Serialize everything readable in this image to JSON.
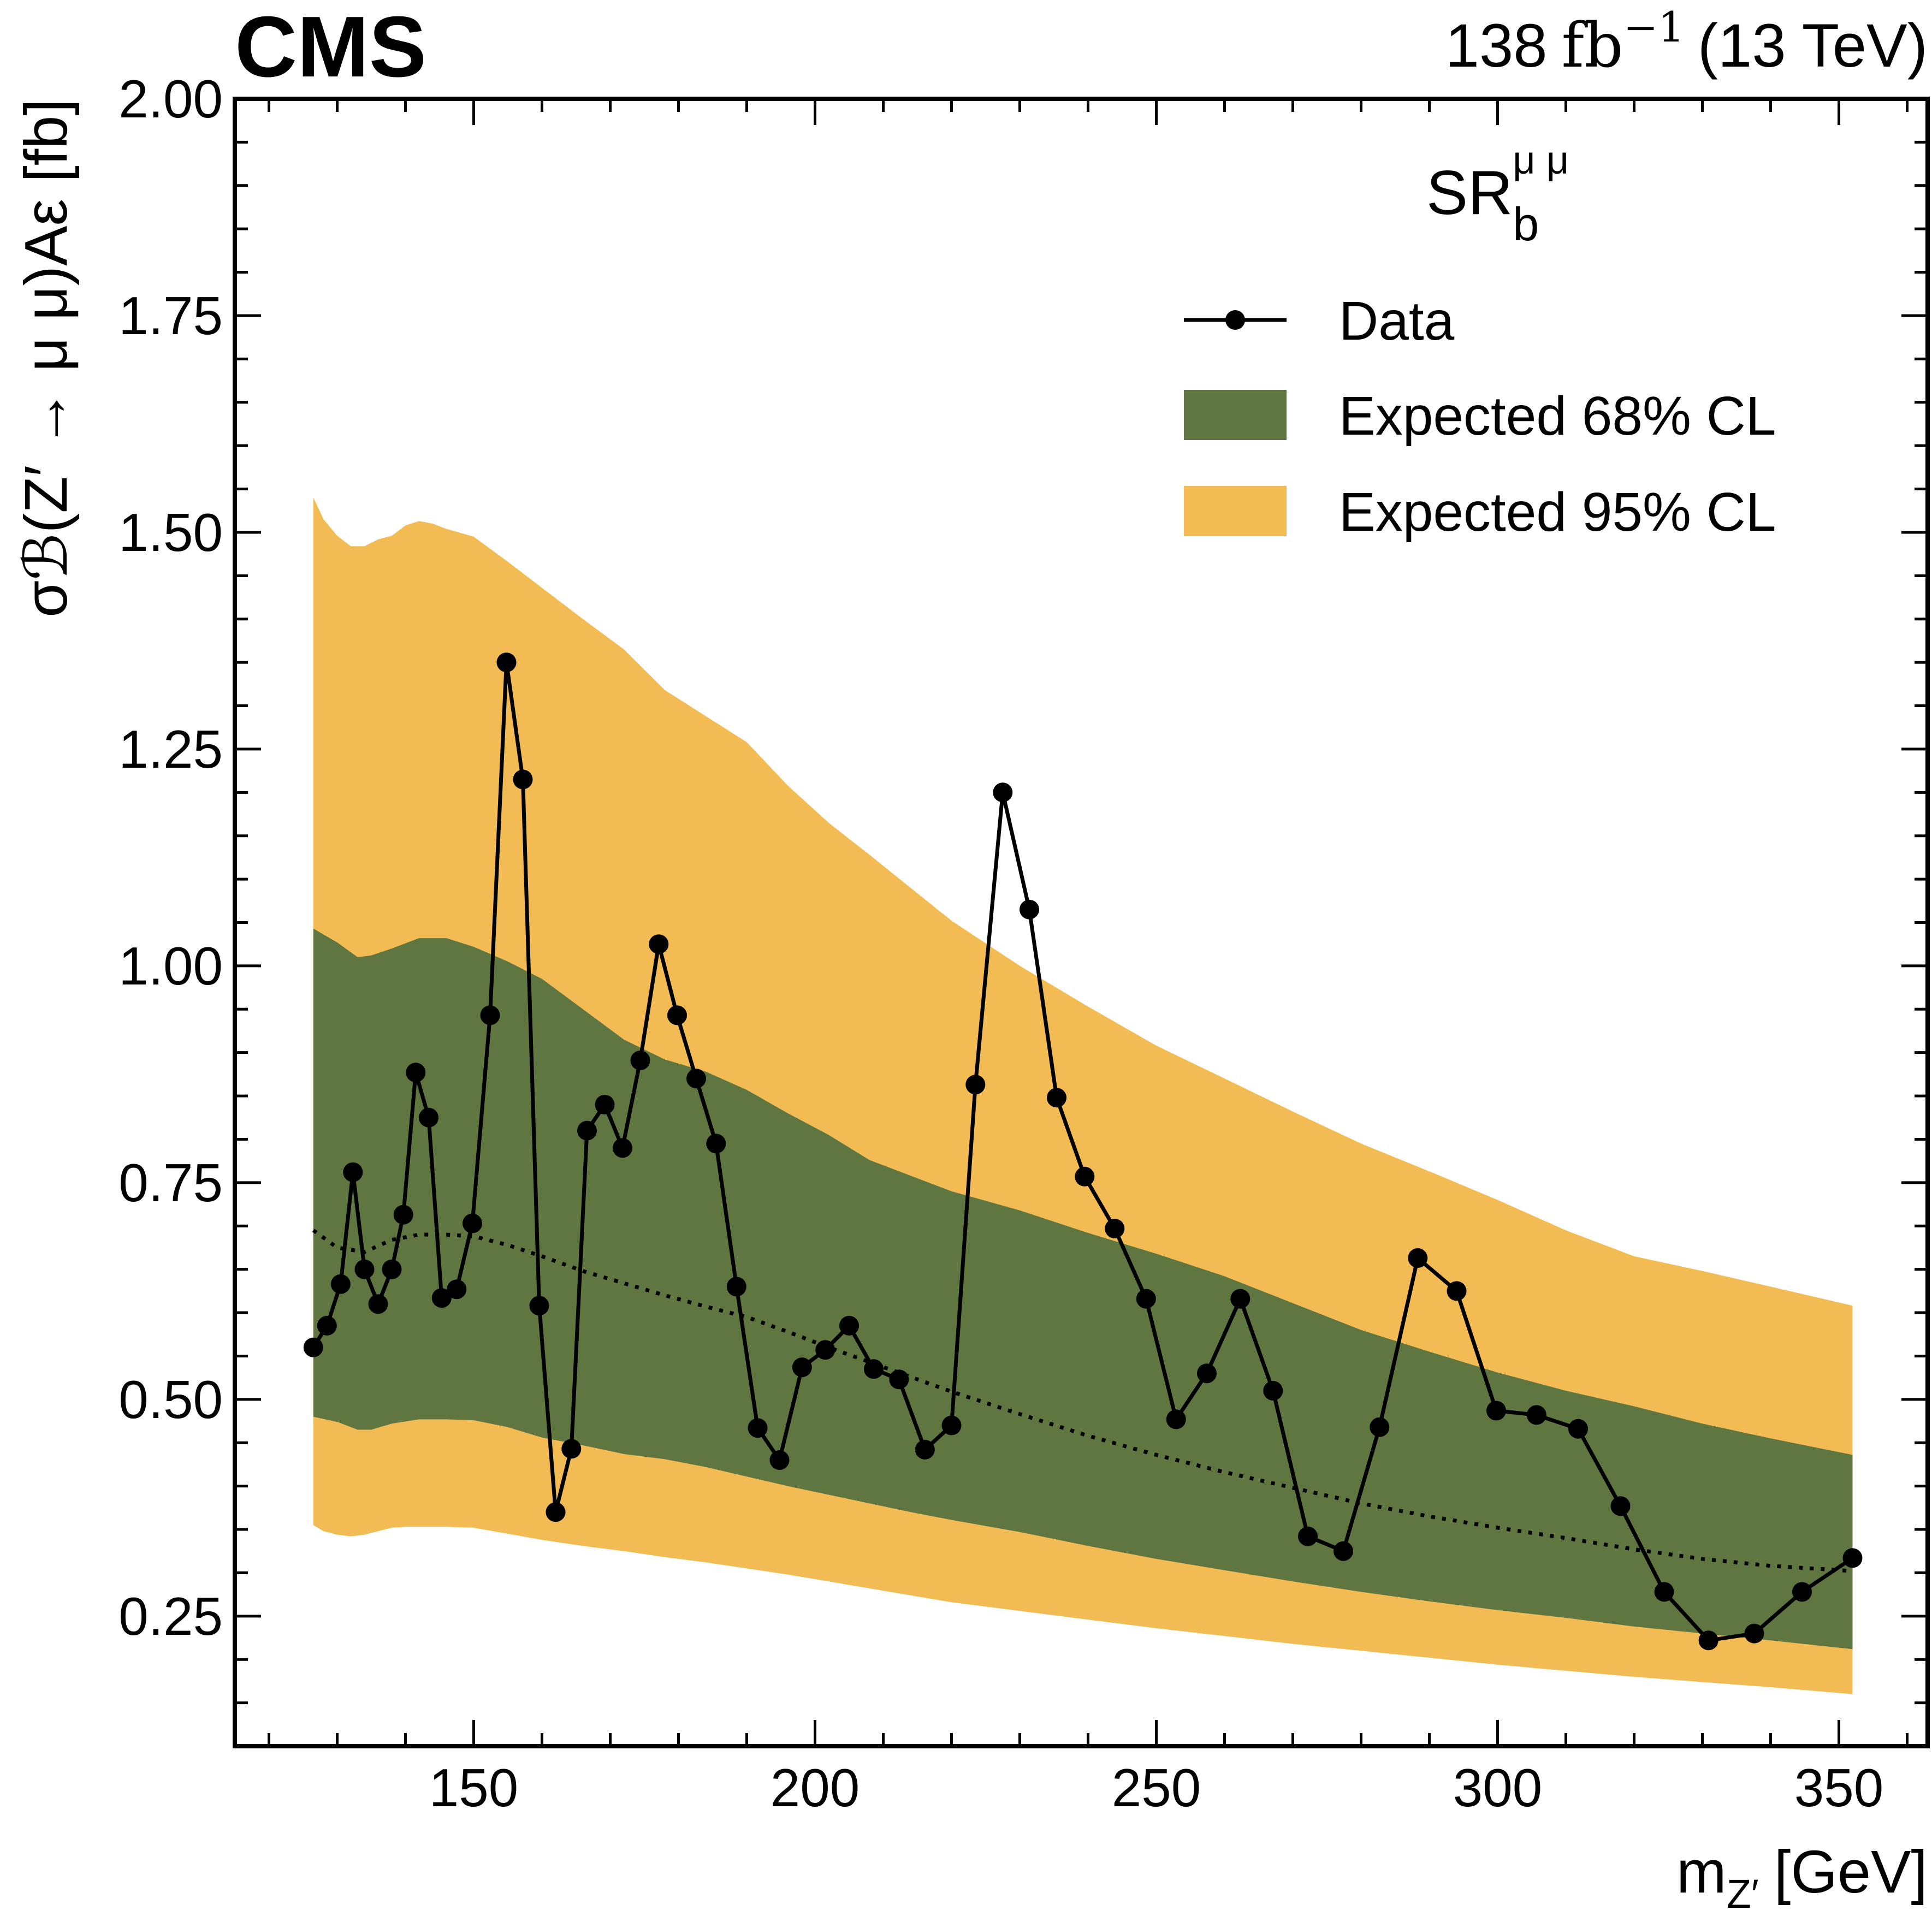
{
  "header": {
    "experiment": "CMS",
    "lumi_value": "138",
    "lumi_unit": "fb",
    "lumi_exponent": "−1",
    "energy": "(13 TeV)"
  },
  "legend": {
    "title_main": "SR",
    "title_sub": "b",
    "title_sup": "μ μ",
    "entries": [
      {
        "label": "Data"
      },
      {
        "label": "Expected 68% CL"
      },
      {
        "label": "Expected 95% CL"
      }
    ]
  },
  "colors": {
    "band68": "#607641",
    "band95": "#f3bb54",
    "data": "#000000",
    "expected": "#000000"
  },
  "chart_data": {
    "type": "line",
    "x_axis": {
      "label_main": "m",
      "label_sub": "Z′",
      "label_unit": "[GeV]",
      "lim": [
        115,
        363
      ],
      "ticks": [
        150,
        200,
        250,
        300,
        350
      ],
      "tick_labels": [
        "150",
        "200",
        "250",
        "300",
        "350"
      ],
      "minor_step": 10
    },
    "y_axis": {
      "label": "σℬ(Z′ → μ μ)Aε [fb]",
      "lim": [
        0.1,
        2.0
      ],
      "ticks": [
        0.25,
        0.5,
        0.75,
        1.0,
        1.25,
        1.5,
        1.75,
        2.0
      ],
      "tick_labels": [
        "0.25",
        "0.50",
        "0.75",
        "1.00",
        "1.25",
        "1.50",
        "1.75",
        "2.00"
      ],
      "minor_step": 0.05
    },
    "grid": false,
    "legend_position": "top-right",
    "series": [
      {
        "name": "Data",
        "style": "line-markers",
        "points": [
          [
            126.5,
            0.56
          ],
          [
            128.5,
            0.585
          ],
          [
            130.5,
            0.633
          ],
          [
            132.3,
            0.762
          ],
          [
            134.0,
            0.65
          ],
          [
            136.0,
            0.61
          ],
          [
            138.0,
            0.65
          ],
          [
            139.7,
            0.713
          ],
          [
            141.5,
            0.877
          ],
          [
            143.4,
            0.825
          ],
          [
            145.3,
            0.617
          ],
          [
            147.5,
            0.627
          ],
          [
            149.8,
            0.703
          ],
          [
            152.4,
            0.943
          ],
          [
            154.8,
            1.35
          ],
          [
            157.2,
            1.215
          ],
          [
            159.6,
            0.608
          ],
          [
            162.0,
            0.37
          ],
          [
            164.3,
            0.443
          ],
          [
            166.6,
            0.81
          ],
          [
            169.2,
            0.84
          ],
          [
            171.8,
            0.79
          ],
          [
            174.4,
            0.891
          ],
          [
            177.1,
            1.025
          ],
          [
            179.8,
            0.943
          ],
          [
            182.6,
            0.87
          ],
          [
            185.5,
            0.795
          ],
          [
            188.5,
            0.63
          ],
          [
            191.6,
            0.467
          ],
          [
            194.8,
            0.43
          ],
          [
            198.1,
            0.537
          ],
          [
            201.5,
            0.557
          ],
          [
            205.0,
            0.585
          ],
          [
            208.6,
            0.535
          ],
          [
            212.3,
            0.523
          ],
          [
            216.1,
            0.442
          ],
          [
            220.0,
            0.47
          ],
          [
            223.5,
            0.863
          ],
          [
            227.5,
            1.2
          ],
          [
            231.4,
            1.065
          ],
          [
            235.4,
            0.848
          ],
          [
            239.5,
            0.757
          ],
          [
            243.9,
            0.697
          ],
          [
            248.5,
            0.616
          ],
          [
            252.9,
            0.477
          ],
          [
            257.4,
            0.53
          ],
          [
            262.3,
            0.616
          ],
          [
            267.1,
            0.51
          ],
          [
            272.2,
            0.342
          ],
          [
            277.4,
            0.325
          ],
          [
            282.7,
            0.468
          ],
          [
            288.3,
            0.663
          ],
          [
            294.0,
            0.625
          ],
          [
            299.8,
            0.487
          ],
          [
            305.7,
            0.482
          ],
          [
            311.8,
            0.466
          ],
          [
            318.0,
            0.377
          ],
          [
            324.4,
            0.278
          ],
          [
            330.9,
            0.222
          ],
          [
            337.6,
            0.23
          ],
          [
            344.6,
            0.278
          ],
          [
            352.0,
            0.317
          ]
        ]
      },
      {
        "name": "Expected",
        "style": "dotted",
        "points": [
          [
            126.5,
            0.695
          ],
          [
            130.0,
            0.675
          ],
          [
            134.0,
            0.67
          ],
          [
            138.0,
            0.684
          ],
          [
            142.0,
            0.69
          ],
          [
            146.0,
            0.69
          ],
          [
            150.0,
            0.688
          ],
          [
            155.0,
            0.678
          ],
          [
            160.0,
            0.665
          ],
          [
            166.0,
            0.648
          ],
          [
            172.0,
            0.634
          ],
          [
            178.0,
            0.62
          ],
          [
            184.0,
            0.607
          ],
          [
            190.0,
            0.595
          ],
          [
            196.0,
            0.578
          ],
          [
            202.0,
            0.56
          ],
          [
            208.0,
            0.543
          ],
          [
            214.0,
            0.526
          ],
          [
            220.0,
            0.509
          ],
          [
            230.0,
            0.483
          ],
          [
            240.0,
            0.458
          ],
          [
            250.0,
            0.436
          ],
          [
            260.0,
            0.416
          ],
          [
            270.0,
            0.398
          ],
          [
            280.0,
            0.38
          ],
          [
            290.0,
            0.365
          ],
          [
            300.0,
            0.352
          ],
          [
            310.0,
            0.34
          ],
          [
            320.0,
            0.327
          ],
          [
            330.0,
            0.316
          ],
          [
            340.0,
            0.308
          ],
          [
            352.0,
            0.302
          ]
        ]
      },
      {
        "name": "Expected 68% CL",
        "style": "band",
        "x": [
          126.5,
          130.0,
          133.0,
          135.0,
          138.0,
          142.0,
          146.0,
          150.0,
          155.0,
          160.0,
          166.0,
          172.0,
          178.0,
          184.0,
          190.0,
          196.0,
          202.0,
          208.0,
          214.0,
          220.0,
          230.0,
          240.0,
          250.0,
          260.0,
          270.0,
          280.0,
          290.0,
          300.0,
          310.0,
          320.0,
          330.0,
          340.0,
          352.0
        ],
        "upper": [
          1.043,
          1.027,
          1.01,
          1.012,
          1.02,
          1.032,
          1.032,
          1.022,
          1.005,
          0.985,
          0.95,
          0.915,
          0.892,
          0.878,
          0.857,
          0.83,
          0.805,
          0.776,
          0.758,
          0.74,
          0.718,
          0.692,
          0.668,
          0.642,
          0.611,
          0.58,
          0.555,
          0.531,
          0.51,
          0.492,
          0.472,
          0.455,
          0.436
        ],
        "lower": [
          0.48,
          0.474,
          0.465,
          0.465,
          0.472,
          0.477,
          0.477,
          0.476,
          0.468,
          0.456,
          0.447,
          0.437,
          0.431,
          0.422,
          0.411,
          0.4,
          0.39,
          0.38,
          0.37,
          0.361,
          0.347,
          0.331,
          0.316,
          0.303,
          0.29,
          0.278,
          0.267,
          0.257,
          0.248,
          0.238,
          0.23,
          0.222,
          0.212
        ]
      },
      {
        "name": "Expected 95% CL",
        "style": "band",
        "x": [
          126.5,
          128.0,
          130.0,
          132.0,
          134.0,
          136.0,
          138.0,
          140.0,
          142.0,
          144.0,
          146.0,
          150.0,
          155.0,
          160.0,
          166.0,
          172.0,
          178.0,
          184.0,
          190.0,
          196.0,
          202.0,
          208.0,
          214.0,
          220.0,
          230.0,
          240.0,
          250.0,
          260.0,
          270.0,
          280.0,
          290.0,
          300.0,
          310.0,
          320.0,
          330.0,
          340.0,
          352.0
        ],
        "upper": [
          1.54,
          1.515,
          1.496,
          1.484,
          1.484,
          1.492,
          1.496,
          1.508,
          1.513,
          1.51,
          1.504,
          1.495,
          1.466,
          1.436,
          1.4,
          1.365,
          1.318,
          1.288,
          1.258,
          1.208,
          1.165,
          1.128,
          1.09,
          1.052,
          1.0,
          0.953,
          0.908,
          0.87,
          0.832,
          0.795,
          0.763,
          0.73,
          0.695,
          0.665,
          0.648,
          0.63,
          0.608
        ],
        "lower": [
          0.355,
          0.348,
          0.344,
          0.342,
          0.344,
          0.348,
          0.352,
          0.353,
          0.353,
          0.353,
          0.353,
          0.352,
          0.345,
          0.338,
          0.331,
          0.325,
          0.318,
          0.312,
          0.305,
          0.298,
          0.29,
          0.282,
          0.274,
          0.266,
          0.256,
          0.246,
          0.236,
          0.227,
          0.218,
          0.21,
          0.202,
          0.194,
          0.187,
          0.18,
          0.174,
          0.168,
          0.16
        ]
      }
    ]
  }
}
